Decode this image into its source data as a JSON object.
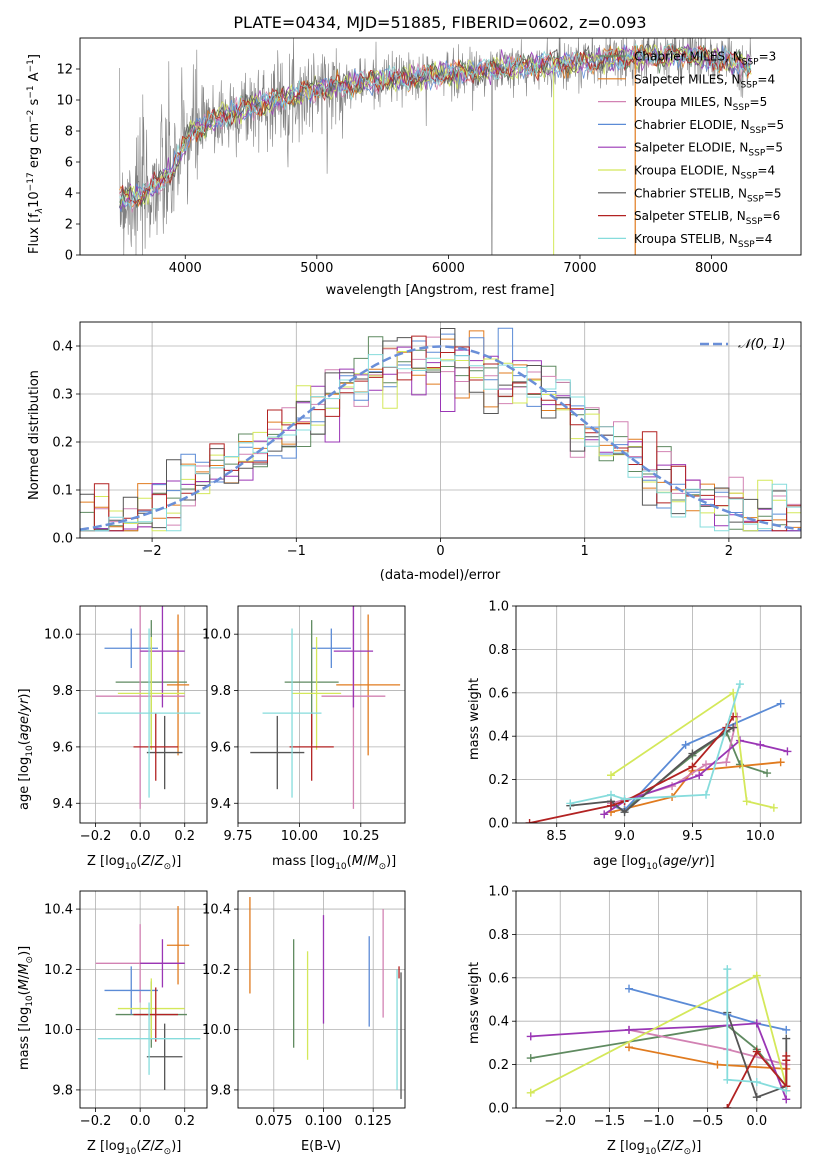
{
  "figure_title": "PLATE=0434, MJD=51885, FIBERID=0602, z=0.093",
  "colors": {
    "cm": "#5f8a60",
    "sm": "#e07b1f",
    "km": "#d282b3",
    "ce": "#5b8bd6",
    "se": "#9a36b5",
    "ke": "#d4e85a",
    "cs": "#555555",
    "ss": "#b22222",
    "ks": "#86dcdc",
    "normal": "#6a8fd8",
    "grid": "#b0b0b0"
  },
  "chart_data": [
    {
      "type": "line",
      "title": "PLATE=0434, MJD=51885, FIBERID=0602, z=0.093",
      "xlabel": "wavelength [Angstrom, rest frame]",
      "ylabel": "Flux [fλ10⁻¹⁷ erg cm⁻² s⁻¹ A⁻¹]",
      "xlim": [
        3200,
        8680
      ],
      "ylim": [
        0,
        14
      ],
      "xticks": [
        "4000",
        "5000",
        "6000",
        "7000",
        "8000"
      ],
      "yticks": [
        "0",
        "2",
        "4",
        "6",
        "8",
        "10",
        "12"
      ],
      "grid": false,
      "legend": "right",
      "continuum": {
        "x": [
          3500,
          3700,
          3900,
          4050,
          4300,
          4600,
          5000,
          5500,
          6000,
          6500,
          7000,
          7400,
          7800,
          8300
        ],
        "y": [
          3.5,
          4.0,
          5.4,
          8.0,
          9.0,
          9.8,
          10.7,
          11.3,
          11.7,
          12.1,
          12.4,
          12.8,
          12.9,
          12.2
        ]
      },
      "legend_items": [
        {
          "label": "Chabrier MILES, N_SSP=3",
          "color": "cm"
        },
        {
          "label": "Salpeter MILES, N_SSP=4",
          "color": "sm"
        },
        {
          "label": "Kroupa MILES, N_SSP=5",
          "color": "km"
        },
        {
          "label": "Chabrier ELODIE, N_SSP=5",
          "color": "ce"
        },
        {
          "label": "Salpeter ELODIE, N_SSP=5",
          "color": "se"
        },
        {
          "label": "Kroupa ELODIE, N_SSP=4",
          "color": "ke"
        },
        {
          "label": "Chabrier STELIB, N_SSP=5",
          "color": "cs"
        },
        {
          "label": "Salpeter STELIB, N_SSP=6",
          "color": "ss"
        },
        {
          "label": "Kroupa STELIB, N_SSP=4",
          "color": "ks"
        }
      ]
    },
    {
      "type": "bar",
      "xlabel": "(data-model)/error",
      "ylabel": "Normed distribution",
      "xlim": [
        -2.5,
        2.5
      ],
      "ylim": [
        0,
        0.45
      ],
      "xticks": [
        "−2",
        "−1",
        "0",
        "1",
        "2"
      ],
      "yticks": [
        "0.0",
        "0.1",
        "0.2",
        "0.3",
        "0.4"
      ],
      "grid": true,
      "legend": "top-right",
      "normal_label": "𝒩(0, 1)",
      "bin_width": 0.1
    },
    {
      "type": "scatter",
      "xlabel": "Z [log₁₀(Z/Z⊙)]",
      "ylabel": "age  [log₁₀(age/yr)]",
      "xlim": [
        -0.27,
        0.3
      ],
      "ylim": [
        9.33,
        10.1
      ],
      "xticks": [
        -0.2,
        0.0,
        0.2
      ],
      "yticks": [
        9.4,
        9.6,
        9.8,
        10.0
      ],
      "grid": true,
      "points": [
        {
          "s": "cm",
          "x": 0.05,
          "xe": 0.16,
          "y": 9.83,
          "ye": 0.22
        },
        {
          "s": "sm",
          "x": 0.17,
          "xe": 0.05,
          "y": 9.82,
          "ye": 0.25
        },
        {
          "s": "km",
          "x": 0.0,
          "xe": 0.2,
          "y": 9.78,
          "ye": 0.4
        },
        {
          "s": "ce",
          "x": -0.04,
          "xe": 0.12,
          "y": 9.95,
          "ye": 0.07
        },
        {
          "s": "se",
          "x": 0.1,
          "xe": 0.1,
          "y": 9.94,
          "ye": 0.2
        },
        {
          "s": "ke",
          "x": 0.05,
          "xe": 0.15,
          "y": 9.79,
          "ye": 0.2
        },
        {
          "s": "cs",
          "x": 0.11,
          "xe": 0.08,
          "y": 9.58,
          "ye": 0.13
        },
        {
          "s": "ss",
          "x": 0.07,
          "xe": 0.1,
          "y": 9.6,
          "ye": 0.12
        },
        {
          "s": "ks",
          "x": 0.04,
          "xe": 0.23,
          "y": 9.72,
          "ye": 0.3
        }
      ]
    },
    {
      "type": "scatter",
      "xlabel": "mass [log₁₀(M/M⊙)]",
      "ylabel": "",
      "xlim": [
        9.75,
        10.43
      ],
      "ylim": [
        9.33,
        10.1
      ],
      "xticks": [
        9.75,
        10.0,
        10.25
      ],
      "yticks": [
        9.4,
        9.6,
        9.8,
        10.0
      ],
      "xticklabels": [
        "9.75",
        "10.00",
        "10.25"
      ],
      "grid": true,
      "points": [
        {
          "s": "cm",
          "x": 10.05,
          "xe": 0.11,
          "y": 9.83,
          "ye": 0.22
        },
        {
          "s": "sm",
          "x": 10.28,
          "xe": 0.13,
          "y": 9.82,
          "ye": 0.25
        },
        {
          "s": "km",
          "x": 10.22,
          "xe": 0.13,
          "y": 9.78,
          "ye": 0.4
        },
        {
          "s": "ce",
          "x": 10.13,
          "xe": 0.08,
          "y": 9.95,
          "ye": 0.07
        },
        {
          "s": "se",
          "x": 10.22,
          "xe": 0.08,
          "y": 9.94,
          "ye": 0.2
        },
        {
          "s": "ke",
          "x": 10.07,
          "xe": 0.1,
          "y": 9.79,
          "ye": 0.2
        },
        {
          "s": "cs",
          "x": 9.91,
          "xe": 0.11,
          "y": 9.58,
          "ye": 0.13
        },
        {
          "s": "ss",
          "x": 10.05,
          "xe": 0.09,
          "y": 9.6,
          "ye": 0.12
        },
        {
          "s": "ks",
          "x": 9.97,
          "xe": 0.12,
          "y": 9.72,
          "ye": 0.3
        }
      ]
    },
    {
      "type": "line",
      "xlabel": "age  [log₁₀(age/yr)]",
      "ylabel": "mass weight",
      "xlim": [
        8.2,
        10.3
      ],
      "ylim": [
        0,
        1.0
      ],
      "xticks": [
        8.5,
        9.0,
        9.5,
        10.0
      ],
      "yticks": [
        0.0,
        0.2,
        0.4,
        0.6,
        0.8,
        1.0
      ],
      "grid": true,
      "series": [
        {
          "s": "cm",
          "x": [
            9.0,
            9.5,
            9.75,
            9.85,
            10.05
          ],
          "y": [
            0.06,
            0.31,
            0.42,
            0.27,
            0.23
          ]
        },
        {
          "s": "sm",
          "x": [
            8.9,
            9.35,
            9.5,
            10.15
          ],
          "y": [
            0.05,
            0.12,
            0.24,
            0.28
          ]
        },
        {
          "s": "km",
          "x": [
            8.9,
            9.35,
            9.6,
            9.75,
            9.83
          ],
          "y": [
            0.09,
            0.17,
            0.27,
            0.28,
            0.49
          ]
        },
        {
          "s": "ce",
          "x": [
            8.9,
            9.0,
            9.45,
            10.15
          ],
          "y": [
            0.08,
            0.06,
            0.36,
            0.55
          ]
        },
        {
          "s": "se",
          "x": [
            8.85,
            9.0,
            9.55,
            9.85,
            10.0,
            10.2
          ],
          "y": [
            0.04,
            0.1,
            0.22,
            0.38,
            0.36,
            0.33
          ]
        },
        {
          "s": "ke",
          "x": [
            8.9,
            9.8,
            9.9,
            10.1
          ],
          "y": [
            0.22,
            0.6,
            0.1,
            0.07
          ]
        },
        {
          "s": "cs",
          "x": [
            8.6,
            8.9,
            9.0,
            9.5,
            9.8
          ],
          "y": [
            0.08,
            0.1,
            0.05,
            0.32,
            0.44
          ]
        },
        {
          "s": "ss",
          "x": [
            8.3,
            8.9,
            9.0,
            9.5,
            9.75,
            9.8
          ],
          "y": [
            0.0,
            0.08,
            0.1,
            0.26,
            0.44,
            0.49
          ]
        },
        {
          "s": "ks",
          "x": [
            8.6,
            8.9,
            9.0,
            9.6,
            9.85
          ],
          "y": [
            0.09,
            0.13,
            0.11,
            0.13,
            0.64
          ]
        }
      ]
    },
    {
      "type": "scatter",
      "xlabel": "Z [log₁₀(Z/Z⊙)]",
      "ylabel": "mass [log₁₀(M/M⊙)]",
      "xlim": [
        -0.27,
        0.3
      ],
      "ylim": [
        9.74,
        10.46
      ],
      "xticks": [
        -0.2,
        0.0,
        0.2
      ],
      "yticks": [
        9.8,
        10.0,
        10.2,
        10.4
      ],
      "grid": true,
      "points": [
        {
          "s": "cm",
          "x": 0.05,
          "xe": 0.16,
          "y": 10.05,
          "ye": 0.11
        },
        {
          "s": "sm",
          "x": 0.17,
          "xe": 0.05,
          "y": 10.28,
          "ye": 0.13
        },
        {
          "s": "km",
          "x": 0.0,
          "xe": 0.2,
          "y": 10.22,
          "ye": 0.13
        },
        {
          "s": "ce",
          "x": -0.04,
          "xe": 0.12,
          "y": 10.13,
          "ye": 0.08
        },
        {
          "s": "se",
          "x": 0.1,
          "xe": 0.1,
          "y": 10.22,
          "ye": 0.08
        },
        {
          "s": "ke",
          "x": 0.05,
          "xe": 0.15,
          "y": 10.07,
          "ye": 0.1
        },
        {
          "s": "cs",
          "x": 0.11,
          "xe": 0.08,
          "y": 9.91,
          "ye": 0.11
        },
        {
          "s": "ss",
          "x": 0.07,
          "xe": 0.1,
          "y": 10.05,
          "ye": 0.09
        },
        {
          "s": "ks",
          "x": 0.04,
          "xe": 0.23,
          "y": 9.97,
          "ye": 0.12
        }
      ]
    },
    {
      "type": "scatter",
      "xlabel": "E(B-V)",
      "ylabel": "",
      "xlim": [
        0.057,
        0.141
      ],
      "ylim": [
        9.74,
        10.46
      ],
      "xticks": [
        0.075,
        0.1,
        0.125
      ],
      "yticks": [
        9.8,
        10.0,
        10.2,
        10.4
      ],
      "xticklabels": [
        "0.075",
        "0.100",
        "0.125"
      ],
      "grid": true,
      "points": [
        {
          "s": "sm",
          "x": 0.063,
          "y": 10.28,
          "ye": 0.16
        },
        {
          "s": "cm",
          "x": 0.085,
          "y": 10.12,
          "ye": 0.18
        },
        {
          "s": "ke",
          "x": 0.092,
          "y": 10.08,
          "ye": 0.18
        },
        {
          "s": "se",
          "x": 0.1,
          "y": 10.2,
          "ye": 0.18
        },
        {
          "s": "ce",
          "x": 0.123,
          "y": 10.16,
          "ye": 0.15
        },
        {
          "s": "km",
          "x": 0.13,
          "y": 10.22,
          "ye": 0.18
        },
        {
          "s": "ks",
          "x": 0.137,
          "y": 10.0,
          "ye": 0.2
        },
        {
          "s": "ss",
          "x": 0.138,
          "y": 10.19,
          "ye": 0.02
        },
        {
          "s": "cs",
          "x": 0.139,
          "y": 9.98,
          "ye": 0.21
        }
      ]
    },
    {
      "type": "line",
      "xlabel": "Z [log₁₀(Z/Z⊙)]",
      "ylabel": "mass weight",
      "xlim": [
        -2.45,
        0.45
      ],
      "ylim": [
        0,
        1.0
      ],
      "xticks": [
        -2.0,
        -1.5,
        -1.0,
        -0.5,
        0.0
      ],
      "yticks": [
        0.0,
        0.2,
        0.4,
        0.6,
        0.8,
        1.0
      ],
      "grid": true,
      "series": [
        {
          "s": "cm",
          "x": [
            -2.3,
            -0.3,
            0.0,
            0.3
          ],
          "y": [
            0.23,
            0.38,
            0.27,
            0.1
          ]
        },
        {
          "s": "sm",
          "x": [
            -1.3,
            -0.4,
            0.3,
            0.3
          ],
          "y": [
            0.28,
            0.2,
            0.18,
            0.08
          ]
        },
        {
          "s": "km",
          "x": [
            -1.3,
            -0.3,
            0.3,
            0.3
          ],
          "y": [
            0.36,
            0.27,
            0.2,
            0.1
          ]
        },
        {
          "s": "ce",
          "x": [
            -1.3,
            -0.3,
            0.0,
            0.3
          ],
          "y": [
            0.55,
            0.43,
            0.39,
            0.36
          ]
        },
        {
          "s": "se",
          "x": [
            -2.3,
            -1.3,
            -0.3,
            0.0,
            0.3
          ],
          "y": [
            0.33,
            0.36,
            0.38,
            0.39,
            0.04
          ]
        },
        {
          "s": "ke",
          "x": [
            -2.3,
            0.0,
            0.3
          ],
          "y": [
            0.07,
            0.61,
            0.1
          ]
        },
        {
          "s": "cs",
          "x": [
            -0.3,
            0.0,
            0.3,
            0.3
          ],
          "y": [
            0.44,
            0.05,
            0.1,
            0.32
          ]
        },
        {
          "s": "ss",
          "x": [
            -0.3,
            0.0,
            0.3,
            0.3,
            0.3
          ],
          "y": [
            0.0,
            0.26,
            0.1,
            0.24,
            0.22
          ]
        },
        {
          "s": "ks",
          "x": [
            -0.3,
            -0.3,
            0.0,
            0.3
          ],
          "y": [
            0.64,
            0.13,
            0.12,
            0.08
          ]
        }
      ]
    }
  ]
}
